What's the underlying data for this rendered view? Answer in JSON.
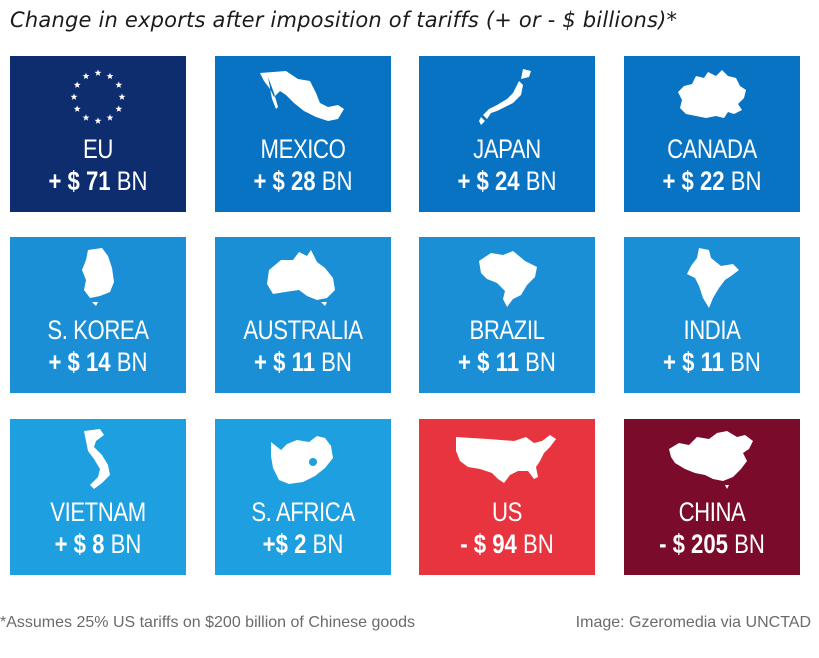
{
  "title": "Change in exports after imposition of tariffs (+ or - $ billions)*",
  "footnote": "*Assumes 25% US tariffs on $200 billion of Chinese goods",
  "credit": "Image: Gzeromedia via UNCTAD",
  "colors": {
    "eu": "#0e2d6e",
    "dark_blue": "#0873c2",
    "mid_blue": "#1a8fd6",
    "light_blue": "#1d9fe0",
    "us": "#e8343f",
    "china": "#7b0b2a"
  },
  "chart_data": {
    "type": "table",
    "title": "Change in exports after imposition of tariffs (+ or - $ billions)*",
    "unit": "BN",
    "cells": [
      {
        "name": "EU",
        "sign": "+",
        "value": 71,
        "label": "+ $ 71",
        "icon": "eu-stars-icon",
        "color": "#0e2d6e"
      },
      {
        "name": "MEXICO",
        "sign": "+",
        "value": 28,
        "label": "+ $ 28",
        "icon": "mexico-map-icon",
        "color": "#0873c2"
      },
      {
        "name": "JAPAN",
        "sign": "+",
        "value": 24,
        "label": "+ $ 24",
        "icon": "japan-map-icon",
        "color": "#0873c2"
      },
      {
        "name": "CANADA",
        "sign": "+",
        "value": 22,
        "label": "+ $ 22",
        "icon": "canada-map-icon",
        "color": "#0873c2"
      },
      {
        "name": "S. KOREA",
        "sign": "+",
        "value": 14,
        "label": "+ $ 14",
        "icon": "south-korea-map-icon",
        "color": "#1a8fd6"
      },
      {
        "name": "AUSTRALIA",
        "sign": "+",
        "value": 11,
        "label": "+ $ 11",
        "icon": "australia-map-icon",
        "color": "#1a8fd6"
      },
      {
        "name": "BRAZIL",
        "sign": "+",
        "value": 11,
        "label": "+ $ 11",
        "icon": "brazil-map-icon",
        "color": "#1a8fd6"
      },
      {
        "name": "INDIA",
        "sign": "+",
        "value": 11,
        "label": "+ $ 11",
        "icon": "india-map-icon",
        "color": "#1a8fd6"
      },
      {
        "name": "VIETNAM",
        "sign": "+",
        "value": 8,
        "label": "+ $ 8",
        "icon": "vietnam-map-icon",
        "color": "#1d9fe0"
      },
      {
        "name": "S. AFRICA",
        "sign": "+",
        "value": 2,
        "label": "+$ 2",
        "icon": "south-africa-map-icon",
        "color": "#1d9fe0"
      },
      {
        "name": "US",
        "sign": "-",
        "value": -94,
        "label": "- $ 94",
        "icon": "us-map-icon",
        "color": "#e8343f"
      },
      {
        "name": "CHINA",
        "sign": "-",
        "value": -205,
        "label": "- $ 205",
        "icon": "china-map-icon",
        "color": "#7b0b2a"
      }
    ]
  }
}
